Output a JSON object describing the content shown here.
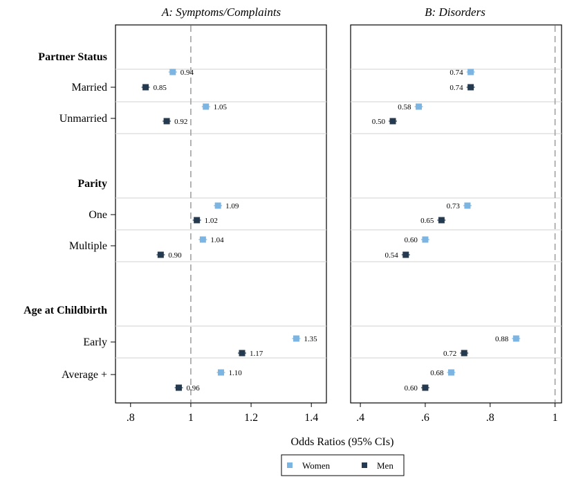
{
  "chart_data": [
    {
      "type": "scatter",
      "title": "A: Symptoms/Complaints",
      "xlim": [
        0.75,
        1.45
      ],
      "xticks": [
        0.8,
        1.0,
        1.2,
        1.4
      ],
      "xtick_labels": [
        ".8",
        "1",
        "1.2",
        "1.4"
      ],
      "reference_line": 1,
      "rows": [
        {
          "label": "Married",
          "women": 0.94,
          "men": 0.85
        },
        {
          "label": "Unmarried",
          "women": 1.05,
          "men": 0.92
        },
        {
          "label": "One",
          "women": 1.09,
          "men": 1.02
        },
        {
          "label": "Multiple",
          "women": 1.04,
          "men": 0.9
        },
        {
          "label": "Early",
          "women": 1.35,
          "men": 1.17
        },
        {
          "label": "Average +",
          "women": 1.1,
          "men": 0.96
        }
      ]
    },
    {
      "type": "scatter",
      "title": "B: Disorders",
      "xlim": [
        0.37,
        1.02
      ],
      "xticks": [
        0.4,
        0.6,
        0.8,
        1.0
      ],
      "xtick_labels": [
        ".4",
        ".6",
        ".8",
        "1"
      ],
      "reference_line": 1,
      "rows": [
        {
          "label": "Married",
          "women": 0.74,
          "men": 0.74
        },
        {
          "label": "Unmarried",
          "women": 0.58,
          "men": 0.5
        },
        {
          "label": "One",
          "women": 0.73,
          "men": 0.65
        },
        {
          "label": "Multiple",
          "women": 0.6,
          "men": 0.54
        },
        {
          "label": "Early",
          "women": 0.88,
          "men": 0.72
        },
        {
          "label": "Average +",
          "women": 0.68,
          "men": 0.6
        }
      ]
    }
  ],
  "groups": [
    "Partner Status",
    "Parity",
    "Age at Childbirth"
  ],
  "xlabel": "Odds Ratios (95% CIs)",
  "legend": [
    {
      "name": "Women",
      "color": "#7cb5e2"
    },
    {
      "name": "Men",
      "color": "#253a4e"
    }
  ],
  "colors": {
    "women": "#7cb5e2",
    "men": "#253a4e",
    "refline": "#a0a0a0",
    "rowline": "#d9d9d9"
  }
}
